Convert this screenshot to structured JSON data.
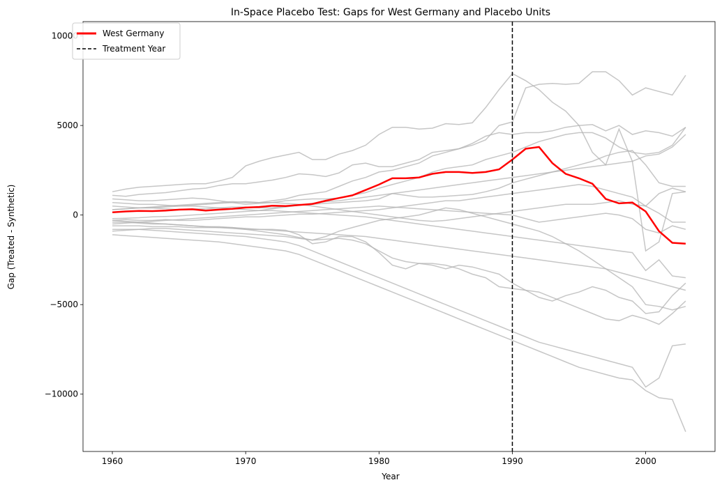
{
  "chart_data": {
    "type": "line",
    "title": "In-Space Placebo Test: Gaps for West Germany and Placebo Units",
    "xlabel": "Year",
    "ylabel": "Gap (Treated - Synthetic)",
    "xlim": [
      1957.8,
      2005.2
    ],
    "ylim": [
      -13200,
      10800
    ],
    "xticks": [
      1960,
      1970,
      1980,
      1990,
      2000
    ],
    "yticks": [
      -10000,
      -5000,
      0,
      5000,
      10000
    ],
    "ytick_labels": [
      "−10000",
      "−5000",
      "0",
      "5000",
      "10000"
    ],
    "x": [
      1960,
      1961,
      1962,
      1963,
      1964,
      1965,
      1966,
      1967,
      1968,
      1969,
      1970,
      1971,
      1972,
      1973,
      1974,
      1975,
      1976,
      1977,
      1978,
      1979,
      1980,
      1981,
      1982,
      1983,
      1984,
      1985,
      1986,
      1987,
      1988,
      1989,
      1990,
      1991,
      1992,
      1993,
      1994,
      1995,
      1996,
      1997,
      1998,
      1999,
      2000,
      2001,
      2002,
      2003
    ],
    "treated": {
      "name": "West Germany",
      "color": "#ff0000",
      "values": [
        150,
        200,
        230,
        220,
        250,
        300,
        320,
        250,
        300,
        350,
        420,
        450,
        520,
        500,
        560,
        620,
        800,
        950,
        1100,
        1400,
        1700,
        2050,
        2050,
        2100,
        2300,
        2400,
        2400,
        2350,
        2400,
        2550,
        3100,
        3700,
        3800,
        2900,
        2300,
        2050,
        1750,
        900,
        650,
        700,
        200,
        -900,
        -1550,
        -1600
      ]
    },
    "treatment": {
      "name": "Treatment Year",
      "year": 1990,
      "color": "#000000"
    },
    "placebo_color": "#b3b3b3",
    "placebos": [
      {
        "values": [
          1300,
          1450,
          1550,
          1600,
          1650,
          1700,
          1750,
          1750,
          1900,
          2100,
          2750,
          3000,
          3200,
          3350,
          3500,
          3100,
          3100,
          3400,
          3600,
          3900,
          4500,
          4900,
          4900,
          4800,
          4850,
          5100,
          5050,
          5150,
          6000,
          7000,
          7900,
          7500,
          7000,
          6300,
          5800,
          5000,
          3500,
          2800,
          4800,
          3000,
          3300,
          3400,
          3800,
          4500
        ]
      },
      {
        "values": [
          1100,
          1050,
          1150,
          1200,
          1250,
          1350,
          1450,
          1500,
          1650,
          1750,
          1750,
          1850,
          1950,
          2100,
          2300,
          2250,
          2150,
          2350,
          2800,
          2900,
          2700,
          2700,
          2900,
          3100,
          3500,
          3600,
          3700,
          3900,
          4200,
          5000,
          5200,
          7100,
          7300,
          7350,
          7300,
          7350,
          8000,
          8000,
          7500,
          6700,
          7100,
          6900,
          6700,
          7800
        ]
      },
      {
        "values": [
          300,
          350,
          400,
          450,
          500,
          550,
          600,
          650,
          700,
          750,
          700,
          700,
          800,
          900,
          1100,
          1200,
          1300,
          1600,
          1900,
          2100,
          2400,
          2500,
          2700,
          2900,
          3300,
          3500,
          3700,
          4000,
          4400,
          4600,
          4500,
          4600,
          4600,
          4700,
          4900,
          5000,
          5050,
          4700,
          5000,
          4500,
          4700,
          4600,
          4400,
          4900
        ]
      },
      {
        "values": [
          900,
          850,
          800,
          800,
          850,
          900,
          950,
          900,
          800,
          700,
          600,
          650,
          700,
          800,
          850,
          900,
          900,
          950,
          1100,
          1250,
          1500,
          1700,
          1900,
          2100,
          2400,
          2600,
          2700,
          2800,
          3100,
          3300,
          3500,
          3800,
          4100,
          4300,
          4500,
          4600,
          4600,
          4300,
          3800,
          3500,
          3400,
          3500,
          3900,
          4900
        ]
      },
      {
        "values": [
          300,
          350,
          400,
          400,
          350,
          300,
          350,
          350,
          400,
          450,
          450,
          400,
          400,
          500,
          550,
          600,
          650,
          700,
          750,
          800,
          900,
          1200,
          1100,
          1000,
          1000,
          1050,
          1100,
          1150,
          1300,
          1500,
          1800,
          2000,
          2200,
          2400,
          2600,
          2800,
          3000,
          3300,
          3500,
          3600,
          2800,
          1800,
          1600,
          1600
        ]
      },
      {
        "values": [
          -200,
          -180,
          -150,
          -100,
          -80,
          -50,
          0,
          50,
          100,
          150,
          200,
          250,
          350,
          450,
          550,
          650,
          750,
          800,
          900,
          1000,
          1100,
          1200,
          1300,
          1400,
          1500,
          1600,
          1700,
          1800,
          1900,
          2000,
          2100,
          2200,
          2300,
          2400,
          2500,
          2600,
          2700,
          2800,
          2900,
          3000,
          -2000,
          -1500,
          1200,
          1300
        ]
      },
      {
        "values": [
          -300,
          -250,
          -300,
          -300,
          -250,
          -300,
          -300,
          -250,
          -200,
          -150,
          -100,
          -100,
          -50,
          0,
          50,
          50,
          100,
          150,
          200,
          250,
          300,
          400,
          500,
          600,
          700,
          800,
          800,
          900,
          1000,
          1100,
          1200,
          1300,
          1400,
          1500,
          1600,
          1700,
          1600,
          1400,
          1200,
          1000,
          500,
          100,
          -400,
          -400
        ]
      },
      {
        "values": [
          500,
          450,
          400,
          400,
          450,
          500,
          550,
          600,
          650,
          700,
          750,
          700,
          700,
          650,
          600,
          500,
          400,
          300,
          200,
          100,
          0,
          -100,
          -200,
          -300,
          -350,
          -300,
          -200,
          -100,
          0,
          100,
          200,
          300,
          400,
          500,
          600,
          600,
          600,
          700,
          800,
          600,
          500,
          1200,
          1500,
          1300
        ]
      },
      {
        "values": [
          -500,
          -450,
          -400,
          -350,
          -300,
          -250,
          -200,
          -150,
          -100,
          -50,
          0,
          50,
          100,
          150,
          200,
          250,
          300,
          350,
          400,
          450,
          500,
          450,
          400,
          350,
          300,
          250,
          200,
          150,
          100,
          50,
          0,
          -200,
          -400,
          -300,
          -200,
          -100,
          0,
          100,
          0,
          -200,
          -800,
          -1000,
          -600,
          -800
        ]
      },
      {
        "values": [
          -900,
          -850,
          -800,
          -750,
          -750,
          -800,
          -850,
          -900,
          -950,
          -1000,
          -1050,
          -1100,
          -1150,
          -1200,
          -1300,
          -1400,
          -1200,
          -900,
          -700,
          -500,
          -300,
          -200,
          -100,
          0,
          200,
          400,
          300,
          100,
          -100,
          -300,
          -500,
          -700,
          -900,
          -1200,
          -1600,
          -2000,
          -2500,
          -3000,
          -3500,
          -4000,
          -5000,
          -5100,
          -5300,
          -5100
        ]
      },
      {
        "values": [
          -600,
          -600,
          -600,
          -650,
          -650,
          -650,
          -700,
          -700,
          -700,
          -700,
          -800,
          -900,
          -1000,
          -1100,
          -1250,
          -1400,
          -1350,
          -1300,
          -1400,
          -1600,
          -2000,
          -2400,
          -2600,
          -2700,
          -2800,
          -3000,
          -2800,
          -2900,
          -3100,
          -3300,
          -3800,
          -4200,
          -4600,
          -4800,
          -4500,
          -4300,
          -4000,
          -4200,
          -4600,
          -4800,
          -5500,
          -5400,
          -4500,
          -3800
        ]
      },
      {
        "values": [
          -400,
          -400,
          -450,
          -500,
          -500,
          -550,
          -600,
          -650,
          -650,
          -700,
          -750,
          -800,
          -800,
          -850,
          -1100,
          -1600,
          -1500,
          -1200,
          -1200,
          -1500,
          -2100,
          -2800,
          -3000,
          -2700,
          -2700,
          -2800,
          -3000,
          -3300,
          -3500,
          -4000,
          -4100,
          -4200,
          -4300,
          -4600,
          -4900,
          -5200,
          -5500,
          -5800,
          -5900,
          -5600,
          -5800,
          -6100,
          -5500,
          -4800
        ]
      },
      {
        "values": [
          -1100,
          -1150,
          -1200,
          -1250,
          -1300,
          -1350,
          -1400,
          -1450,
          -1500,
          -1600,
          -1700,
          -1800,
          -1900,
          -2000,
          -2200,
          -2500,
          -2800,
          -3100,
          -3400,
          -3700,
          -4000,
          -4300,
          -4600,
          -4900,
          -5200,
          -5500,
          -5800,
          -6100,
          -6400,
          -6700,
          -7000,
          -7300,
          -7600,
          -7900,
          -8200,
          -8500,
          -8700,
          -8900,
          -9100,
          -9200,
          -9800,
          -10200,
          -10300,
          -12100
        ]
      },
      {
        "values": [
          -800,
          -800,
          -800,
          -850,
          -900,
          -950,
          -1000,
          -1050,
          -1100,
          -1150,
          -1200,
          -1300,
          -1400,
          -1500,
          -1700,
          -2000,
          -2300,
          -2600,
          -2900,
          -3200,
          -3500,
          -3800,
          -4100,
          -4400,
          -4700,
          -5000,
          -5300,
          -5600,
          -5900,
          -6200,
          -6500,
          -6800,
          -7100,
          -7300,
          -7500,
          -7700,
          -7900,
          -8100,
          -8300,
          -8500,
          -9600,
          -9100,
          -7300,
          -7200
        ]
      },
      {
        "values": [
          700,
          650,
          600,
          600,
          550,
          500,
          500,
          450,
          400,
          350,
          300,
          250,
          250,
          200,
          150,
          100,
          50,
          0,
          -50,
          -100,
          -200,
          -300,
          -400,
          -500,
          -600,
          -700,
          -800,
          -900,
          -1000,
          -1100,
          -1200,
          -1300,
          -1400,
          -1500,
          -1600,
          -1700,
          -1800,
          -1900,
          -2000,
          -2100,
          -3100,
          -2500,
          -3400,
          -3500
        ]
      },
      {
        "values": [
          -300,
          -350,
          -400,
          -450,
          -500,
          -550,
          -600,
          -650,
          -700,
          -750,
          -800,
          -800,
          -850,
          -900,
          -950,
          -1000,
          -1050,
          -1100,
          -1150,
          -1200,
          -1300,
          -1400,
          -1500,
          -1600,
          -1700,
          -1800,
          -1900,
          -2000,
          -2100,
          -2200,
          -2300,
          -2400,
          -2500,
          -2600,
          -2700,
          -2800,
          -2900,
          -3000,
          -3200,
          -3400,
          -3600,
          -3800,
          -4000,
          -4200
        ]
      }
    ]
  }
}
